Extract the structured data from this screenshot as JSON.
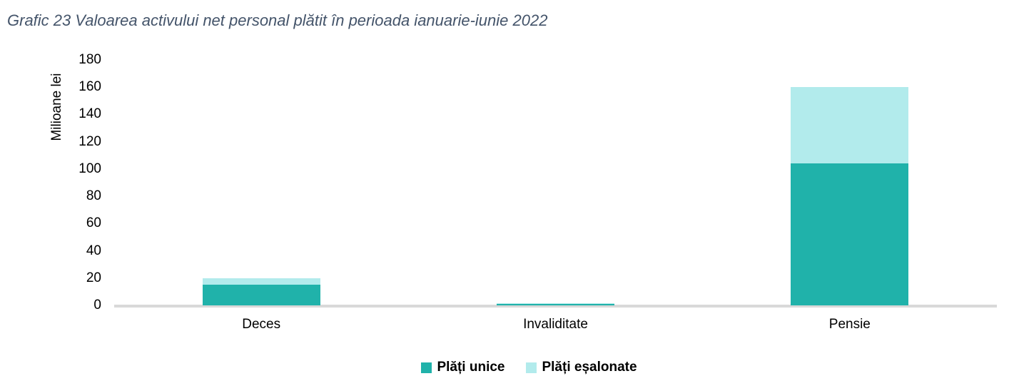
{
  "chart_data": {
    "type": "bar",
    "stacked": true,
    "title": "Grafic 23 Valoarea activului net personal plătit în perioada ianuarie-iunie 2022",
    "categories": [
      "Deces",
      "Invaliditate",
      "Pensie"
    ],
    "series": [
      {
        "name": "Plăți unice",
        "color": "#20B2AA",
        "values": [
          15,
          1,
          104
        ]
      },
      {
        "name": "Plăți eșalonate",
        "color": "#B2EBEC",
        "values": [
          5,
          0.5,
          56
        ]
      }
    ],
    "xlabel": "",
    "ylabel": "Milioane lei",
    "ylim": [
      0,
      180
    ],
    "ytick_step": 20,
    "grid": false,
    "legend_position": "bottom",
    "colors": {
      "title_text": "#44546A",
      "axis_line": "#D9D9D9",
      "label_text": "#000000",
      "background": "#FFFFFF"
    }
  }
}
